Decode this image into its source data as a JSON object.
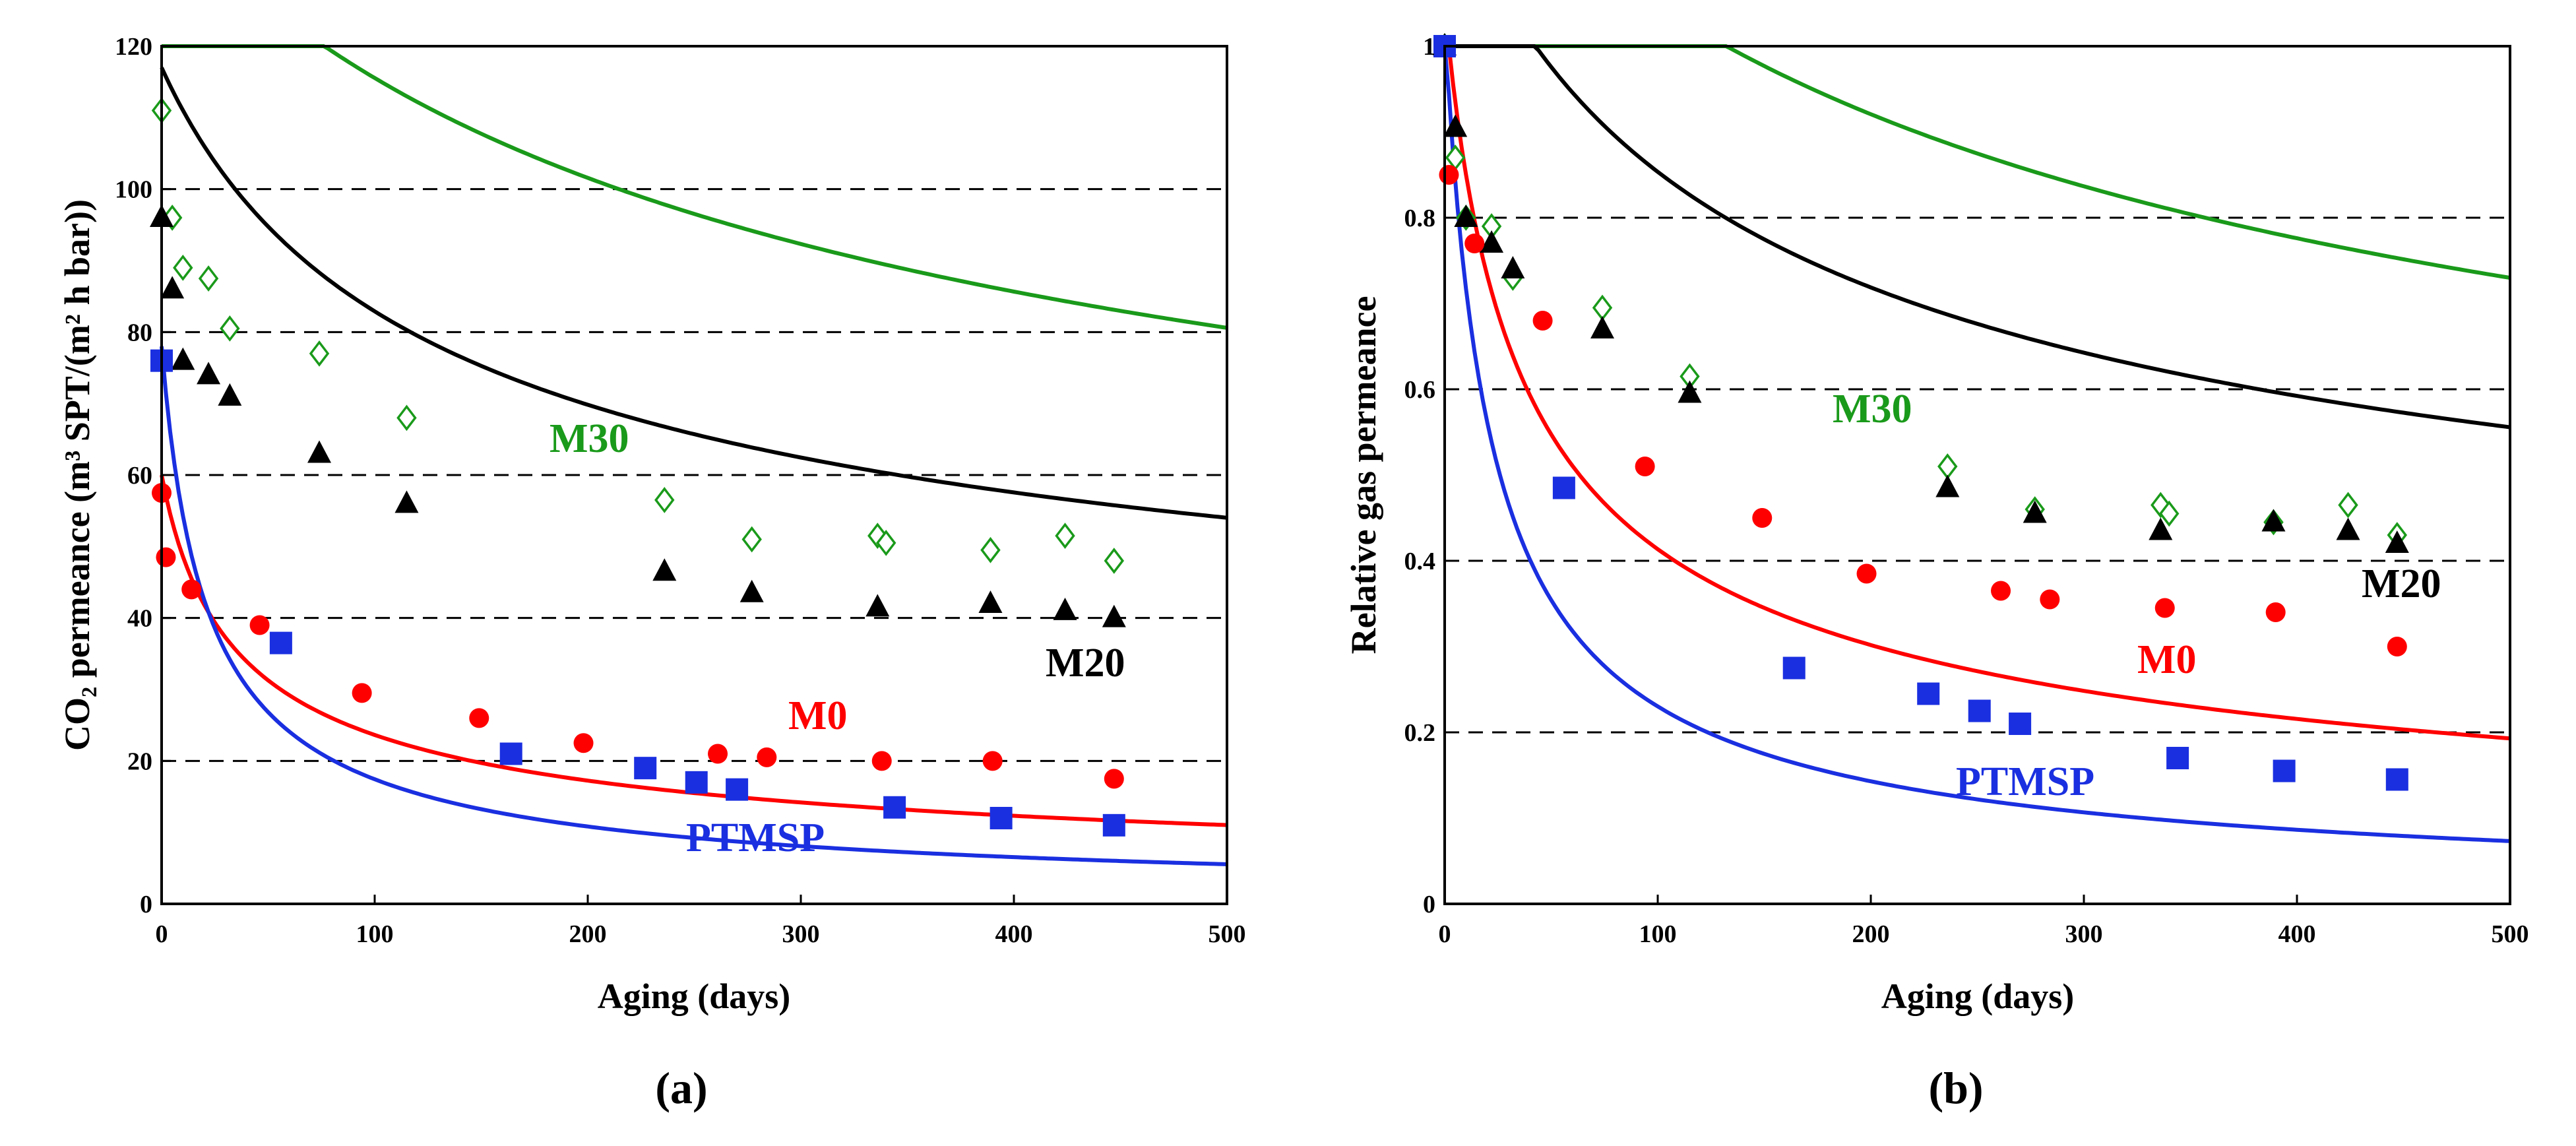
{
  "chart_data": [
    {
      "type": "scatter",
      "panel_label": "(a)",
      "xlabel": "Aging (days)",
      "ylabel": "CO₂ permeance (m³ SPT/(m² h bar))",
      "xlim": [
        0,
        500
      ],
      "ylim": [
        0,
        120
      ],
      "x_ticks": [
        0,
        100,
        200,
        300,
        400,
        500
      ],
      "y_ticks": [
        0,
        20,
        40,
        60,
        80,
        100,
        120
      ],
      "gridlines": [
        20,
        40,
        60,
        80,
        100
      ],
      "series": [
        {
          "name": "M30",
          "color": "#1a9a1a",
          "marker": "diamond-open",
          "x": [
            0,
            5,
            10,
            22,
            32,
            74,
            115,
            236,
            277,
            336,
            340,
            389,
            424,
            447
          ],
          "y": [
            111,
            96,
            89,
            87.5,
            80.5,
            77,
            68,
            56.5,
            51,
            51.5,
            50.5,
            49.5,
            51.5,
            48
          ],
          "fit": {
            "a": 110,
            "b": 0.005,
            "p": 0.62,
            "c": 30
          }
        },
        {
          "name": "M20",
          "color": "#000000",
          "marker": "triangle",
          "x": [
            0,
            5,
            10,
            22,
            32,
            74,
            115,
            236,
            277,
            336,
            389,
            424,
            447
          ],
          "y": [
            96,
            86,
            76,
            74,
            71,
            63,
            56,
            46.5,
            43.5,
            41.5,
            42,
            41,
            40
          ],
          "fit": {
            "a": 97,
            "b": 0.013,
            "p": 0.52,
            "c": 20
          }
        },
        {
          "name": "M0",
          "color": "#ff0000",
          "marker": "circle",
          "x": [
            0,
            2,
            14,
            46,
            94,
            149,
            198,
            261,
            284,
            338,
            390,
            447
          ],
          "y": [
            57.5,
            48.5,
            44,
            39,
            29.5,
            26,
            22.5,
            21,
            20.5,
            20,
            20,
            17.5
          ],
          "fit": {
            "a": 60,
            "b": 0.05,
            "p": 0.52,
            "c": 0
          }
        },
        {
          "name": "PTMSP",
          "color": "#1a2fe0",
          "marker": "square",
          "x": [
            0,
            56,
            164,
            227,
            251,
            270,
            344,
            394,
            447
          ],
          "y": [
            76,
            36.5,
            21,
            19,
            17,
            16,
            13.5,
            12,
            11
          ],
          "fit": {
            "a": 78,
            "b": 0.06,
            "p": 0.77,
            "c": 0
          }
        }
      ],
      "series_labels": [
        "M30",
        "M20",
        "M0",
        "PTMSP"
      ]
    },
    {
      "type": "scatter",
      "panel_label": "(b)",
      "xlabel": "Aging (days)",
      "ylabel": "Relative gas permeance",
      "xlim": [
        0,
        500
      ],
      "ylim": [
        0,
        1
      ],
      "x_ticks": [
        0,
        100,
        200,
        300,
        400,
        500
      ],
      "y_ticks": [
        0,
        0.2,
        0.4,
        0.6,
        0.8,
        1
      ],
      "gridlines": [
        0.2,
        0.4,
        0.6,
        0.8
      ],
      "series": [
        {
          "name": "M30",
          "color": "#1a9a1a",
          "marker": "diamond-open",
          "x": [
            0,
            5,
            10,
            22,
            32,
            74,
            115,
            236,
            277,
            336,
            340,
            389,
            424,
            447
          ],
          "y": [
            1,
            0.87,
            0.8,
            0.79,
            0.73,
            0.695,
            0.615,
            0.51,
            0.46,
            0.465,
            0.455,
            0.445,
            0.465,
            0.43
          ],
          "fit": {
            "a": 1.0,
            "b": 0.005,
            "p": 0.62,
            "c": 0.27
          }
        },
        {
          "name": "M20",
          "color": "#000000",
          "marker": "triangle",
          "x": [
            0,
            5,
            10,
            22,
            32,
            74,
            115,
            236,
            277,
            336,
            389,
            424,
            447
          ],
          "y": [
            1,
            0.905,
            0.8,
            0.77,
            0.74,
            0.67,
            0.595,
            0.485,
            0.455,
            0.435,
            0.445,
            0.435,
            0.42
          ],
          "fit": {
            "a": 1.0,
            "b": 0.013,
            "p": 0.52,
            "c": 0.205
          }
        },
        {
          "name": "M0",
          "color": "#ff0000",
          "marker": "circle",
          "x": [
            0,
            2,
            14,
            46,
            94,
            149,
            198,
            261,
            284,
            338,
            390,
            447
          ],
          "y": [
            1,
            0.85,
            0.77,
            0.68,
            0.51,
            0.45,
            0.385,
            0.365,
            0.355,
            0.345,
            0.34,
            0.3
          ],
          "fit": {
            "a": 1.05,
            "b": 0.05,
            "p": 0.52,
            "c": 0
          }
        },
        {
          "name": "PTMSP",
          "color": "#1a2fe0",
          "marker": "square",
          "x": [
            0,
            56,
            164,
            227,
            251,
            270,
            344,
            394,
            447
          ],
          "y": [
            1,
            0.485,
            0.275,
            0.245,
            0.225,
            0.21,
            0.17,
            0.155,
            0.145
          ],
          "fit": {
            "a": 1.03,
            "b": 0.06,
            "p": 0.77,
            "c": 0
          }
        }
      ],
      "series_labels": [
        "M30",
        "M20",
        "M0",
        "PTMSP"
      ]
    }
  ]
}
